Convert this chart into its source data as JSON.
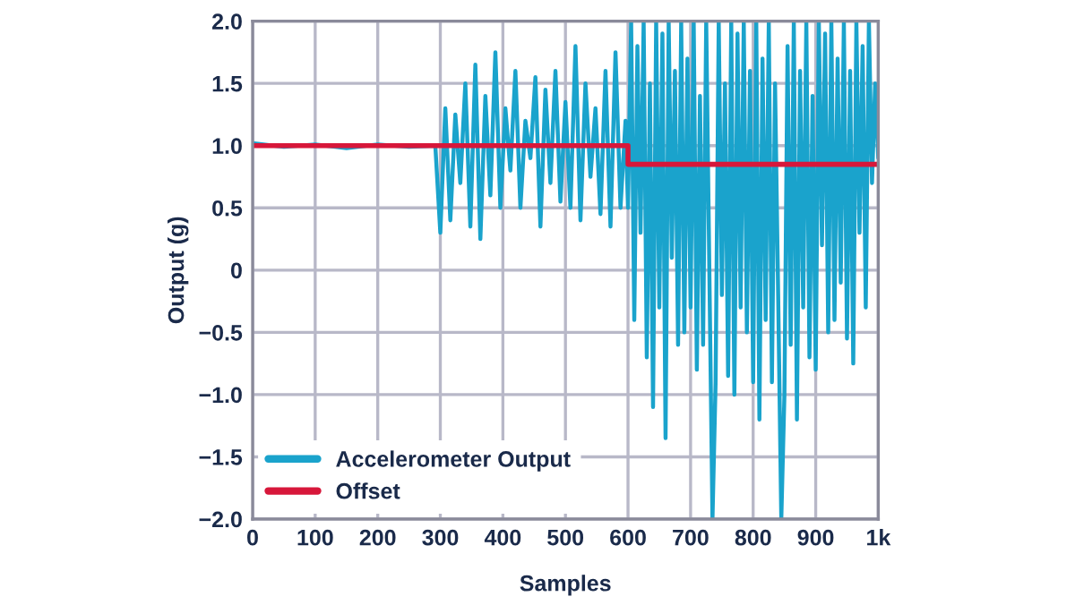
{
  "chart_data": {
    "type": "line",
    "xlabel": "Samples",
    "ylabel": "Output (g)",
    "xlim": [
      0,
      1000
    ],
    "ylim": [
      -2.0,
      2.0
    ],
    "xticks": [
      0,
      100,
      200,
      300,
      400,
      500,
      600,
      700,
      800,
      900,
      {
        "value": 1000,
        "label": "1k"
      }
    ],
    "yticks": [
      {
        "value": -2.0,
        "label": "−2.0"
      },
      {
        "value": -1.5,
        "label": "−1.5"
      },
      {
        "value": -1.0,
        "label": "−1.0"
      },
      {
        "value": -0.5,
        "label": "−0.5"
      },
      0,
      {
        "value": 0.5,
        "label": "0.5"
      },
      {
        "value": 1.0,
        "label": "1.0"
      },
      {
        "value": 1.5,
        "label": "1.5"
      },
      {
        "value": 2.0,
        "label": "2.0"
      }
    ],
    "grid": true,
    "legend": "bottom left",
    "series": [
      {
        "name": "Accelerometer Output",
        "color": "#1aa3cc",
        "x": [
          0,
          50,
          100,
          150,
          200,
          250,
          292,
          300,
          308,
          316,
          324,
          332,
          340,
          348,
          356,
          364,
          372,
          380,
          388,
          396,
          404,
          412,
          420,
          428,
          436,
          444,
          452,
          460,
          468,
          476,
          484,
          492,
          500,
          508,
          516,
          524,
          532,
          540,
          548,
          556,
          564,
          572,
          580,
          588,
          596,
          600,
          605,
          610,
          615,
          620,
          625,
          630,
          635,
          640,
          645,
          650,
          655,
          660,
          665,
          670,
          675,
          680,
          685,
          690,
          695,
          700,
          705,
          710,
          715,
          720,
          725,
          730,
          735,
          740,
          745,
          750,
          755,
          760,
          765,
          770,
          775,
          780,
          785,
          790,
          795,
          800,
          805,
          810,
          815,
          820,
          825,
          830,
          835,
          840,
          845,
          850,
          855,
          860,
          865,
          870,
          875,
          880,
          885,
          890,
          895,
          900,
          905,
          910,
          915,
          920,
          925,
          930,
          935,
          940,
          945,
          950,
          955,
          960,
          965,
          970,
          975,
          980,
          985,
          990,
          995,
          1000
        ],
        "values": [
          1.02,
          0.99,
          1.01,
          0.98,
          1.01,
          0.99,
          1.0,
          0.3,
          1.3,
          0.4,
          1.25,
          0.7,
          1.5,
          0.35,
          1.65,
          0.25,
          1.4,
          0.6,
          1.75,
          0.5,
          1.3,
          0.8,
          1.6,
          0.5,
          1.2,
          0.9,
          1.55,
          0.35,
          1.45,
          0.7,
          1.6,
          0.55,
          1.35,
          0.5,
          1.8,
          0.4,
          1.5,
          0.75,
          1.3,
          0.45,
          1.6,
          0.35,
          1.75,
          0.5,
          1.2,
          0.5,
          2.0,
          -0.4,
          1.8,
          0.3,
          2.0,
          -0.7,
          1.5,
          -1.1,
          2.0,
          -0.3,
          1.9,
          -1.35,
          2.0,
          0.1,
          1.6,
          -0.6,
          2.0,
          -0.5,
          1.7,
          -0.3,
          2.0,
          -0.8,
          1.4,
          -0.6,
          2.0,
          0.0,
          -2.0,
          -0.9,
          2.0,
          -0.2,
          1.5,
          -0.85,
          2.0,
          -1.0,
          1.9,
          -0.3,
          2.0,
          -0.5,
          1.6,
          -0.9,
          2.0,
          -1.2,
          1.7,
          -0.4,
          2.0,
          -0.9,
          1.5,
          -0.2,
          -2.0,
          -1.0,
          1.8,
          -0.6,
          2.0,
          -1.2,
          1.6,
          -0.3,
          2.0,
          -0.7,
          1.4,
          -0.8,
          2.0,
          0.2,
          1.9,
          -0.5,
          2.0,
          -0.4,
          1.7,
          -0.1,
          2.0,
          -0.55,
          1.6,
          -0.75,
          2.0,
          0.3,
          1.8,
          -0.3,
          2.0,
          0.7,
          1.5,
          0.9
        ]
      },
      {
        "name": "Offset",
        "color": "#d7173a",
        "x": [
          0,
          600,
          600,
          1000
        ],
        "values": [
          1.0,
          1.0,
          0.85,
          0.85
        ]
      }
    ]
  }
}
